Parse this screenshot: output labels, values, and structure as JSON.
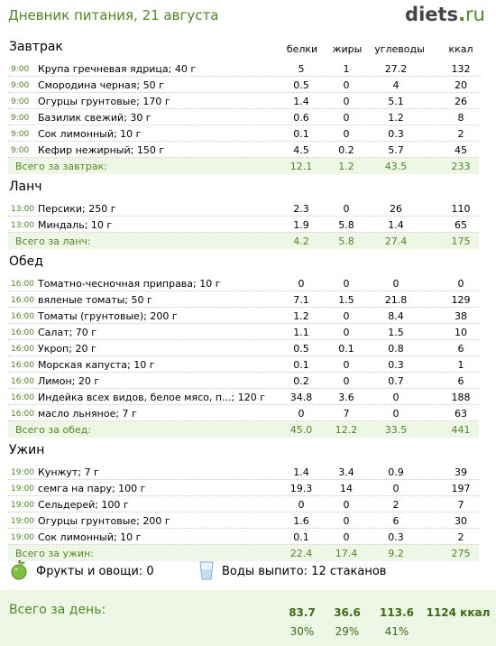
{
  "header": {
    "title": "Дневник питания, 21 августа",
    "logo_main": "diets",
    "logo_dot": ".",
    "logo_tld": "ru"
  },
  "columns": {
    "protein": "белки",
    "fat": "жиры",
    "carbs": "углеводы",
    "kcal": "ккал"
  },
  "sections": [
    {
      "title": "Завтрак",
      "rows": [
        [
          "9:00",
          "Крупа гречневая ядрица; 40 г",
          "5",
          "1",
          "27.2",
          "132"
        ],
        [
          "9:00",
          "Смородина черная; 50 г",
          "0.5",
          "0",
          "4",
          "20"
        ],
        [
          "9:00",
          "Огурцы грунтовые; 170 г",
          "1.4",
          "0",
          "5.1",
          "26"
        ],
        [
          "9:00",
          "Базилик свежий; 30 г",
          "0.6",
          "0",
          "1.2",
          "8"
        ],
        [
          "9:00",
          "Сок лимонный; 10 г",
          "0.1",
          "0",
          "0.3",
          "2"
        ],
        [
          "9:00",
          "Кефир нежирный; 150 г",
          "4.5",
          "0.2",
          "5.7",
          "45"
        ]
      ],
      "total": [
        "Всего за завтрак:",
        "12.1",
        "1.2",
        "43.5",
        "233"
      ]
    },
    {
      "title": "Ланч",
      "rows": [
        [
          "13:00",
          "Персики; 250 г",
          "2.3",
          "0",
          "26",
          "110"
        ],
        [
          "13:00",
          "Миндаль; 10 г",
          "1.9",
          "5.8",
          "1.4",
          "65"
        ]
      ],
      "total": [
        "Всего за ланч:",
        "4.2",
        "5.8",
        "27.4",
        "175"
      ]
    },
    {
      "title": "Обед",
      "rows": [
        [
          "16:00",
          "Томатно-чесночная приправа; 10 г",
          "0",
          "0",
          "0",
          "0"
        ],
        [
          "16:00",
          "вяленые томаты; 50 г",
          "7.1",
          "1.5",
          "21.8",
          "129"
        ],
        [
          "16:00",
          "Томаты (грунтовые); 200 г",
          "1.2",
          "0",
          "8.4",
          "38"
        ],
        [
          "16:00",
          "Салат; 70 г",
          "1.1",
          "0",
          "1.5",
          "10"
        ],
        [
          "16:00",
          "Укроп; 20 г",
          "0.5",
          "0.1",
          "0.8",
          "6"
        ],
        [
          "16:00",
          "Морская капуста; 10 г",
          "0.1",
          "0",
          "0.3",
          "1"
        ],
        [
          "16:00",
          "Лимон; 20 г",
          "0.2",
          "0",
          "0.7",
          "6"
        ],
        [
          "16:00",
          "Индейка всех видов, белое мясо, п...; 120 г",
          "34.8",
          "3.6",
          "0",
          "188"
        ],
        [
          "16:00",
          "масло льняное; 7 г",
          "0",
          "7",
          "0",
          "63"
        ]
      ],
      "total": [
        "Всего за обед:",
        "45.0",
        "12.2",
        "33.5",
        "441"
      ]
    },
    {
      "title": "Ужин",
      "rows": [
        [
          "19:00",
          "Кунжут; 7 г",
          "1.4",
          "3.4",
          "0.9",
          "39"
        ],
        [
          "19:00",
          "семга на пару; 100 г",
          "19.3",
          "14",
          "0",
          "197"
        ],
        [
          "19:00",
          "Сельдерей; 100 г",
          "0",
          "0",
          "2",
          "7"
        ],
        [
          "19:00",
          "Огурцы грунтовые; 200 г",
          "1.6",
          "0",
          "6",
          "30"
        ],
        [
          "19:00",
          "Сок лимонный; 10 г",
          "0.1",
          "0",
          "0.3",
          "2"
        ]
      ],
      "total": [
        "Всего за ужин:",
        "22.4",
        "17.4",
        "9.2",
        "275"
      ]
    }
  ],
  "summary": {
    "fruits": "Фрукты и овощи: 0",
    "water": "Воды выпито: 12 стаканов"
  },
  "day": {
    "label": "Всего за день:",
    "protein": "83.7",
    "fat": "36.6",
    "carbs": "113.6",
    "kcal": "1124 ккал",
    "protein_pct": "30%",
    "fat_pct": "29%",
    "carbs_pct": "41%"
  },
  "icons": {
    "fruit": "apple-icon",
    "water": "water-glass-icon"
  },
  "colors": {
    "accent": "#4b8a1d",
    "total_bg": "#eef7e6"
  }
}
